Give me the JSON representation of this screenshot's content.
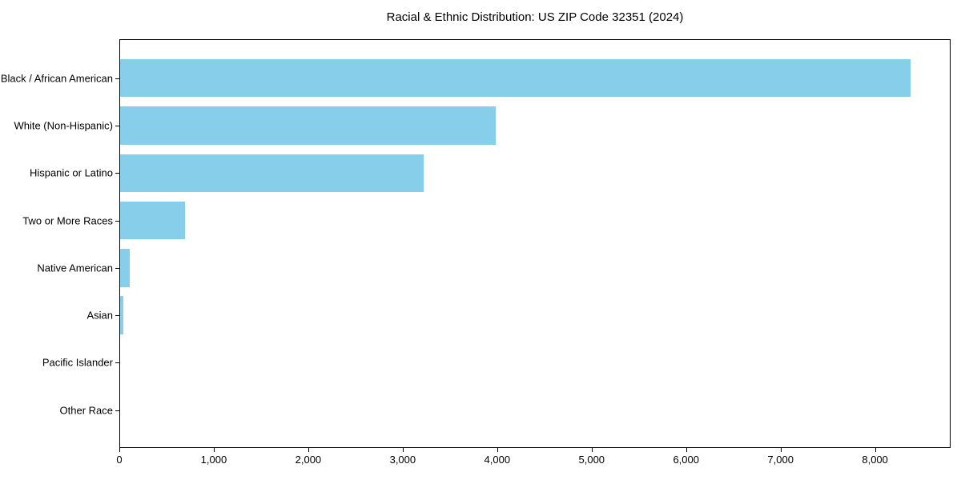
{
  "chart_data": {
    "type": "bar",
    "orientation": "horizontal",
    "title": "Racial & Ethnic Distribution: US ZIP Code 32351 (2024)",
    "categories": [
      "Black / African American",
      "White (Non-Hispanic)",
      "Hispanic or Latino",
      "Two or More Races",
      "Native American",
      "Asian",
      "Pacific Islander",
      "Other Race"
    ],
    "values": [
      8370,
      3975,
      3210,
      685,
      105,
      35,
      0,
      0
    ],
    "bar_color": "#87CEEB",
    "background_color": "#ffffff",
    "spine_color": "#000000",
    "xlabel": "",
    "ylabel": "",
    "xlim": [
      0,
      8800
    ],
    "xticks": [
      0,
      1000,
      2000,
      3000,
      4000,
      5000,
      6000,
      7000,
      8000
    ],
    "xtick_labels": [
      "0",
      "1,000",
      "2,000",
      "3,000",
      "4,000",
      "5,000",
      "6,000",
      "7,000",
      "8,000"
    ],
    "grid": false,
    "legend": null
  }
}
